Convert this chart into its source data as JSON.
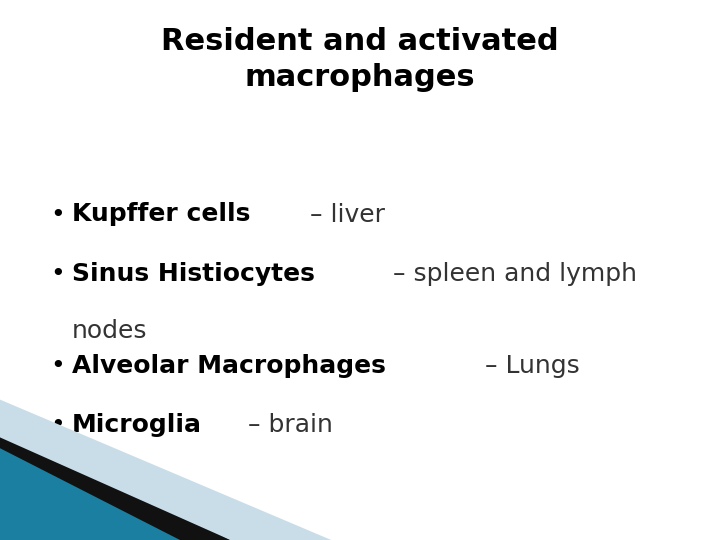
{
  "title_line1": "Resident and activated",
  "title_line2": "macrophages",
  "bg_color": "#ffffff",
  "title_color": "#000000",
  "title_fontsize": 22,
  "bullet_items": [
    {
      "bold": "Kupffer cells",
      "normal": " – liver",
      "wrap_line2": null
    },
    {
      "bold": "Sinus Histiocytes",
      "normal": " – spleen and lymph",
      "wrap_line2": "nodes"
    },
    {
      "bold": "Alveolar Macrophages",
      "normal": " – Lungs",
      "wrap_line2": null
    },
    {
      "bold": "Microglia",
      "normal": " – brain",
      "wrap_line2": null
    }
  ],
  "bullet_fontsize": 18,
  "text_color": "#000000",
  "normal_color": "#333333",
  "decoration_teal": "#1a7fa0",
  "decoration_black": "#111111",
  "decoration_lightblue": "#c8dde8"
}
